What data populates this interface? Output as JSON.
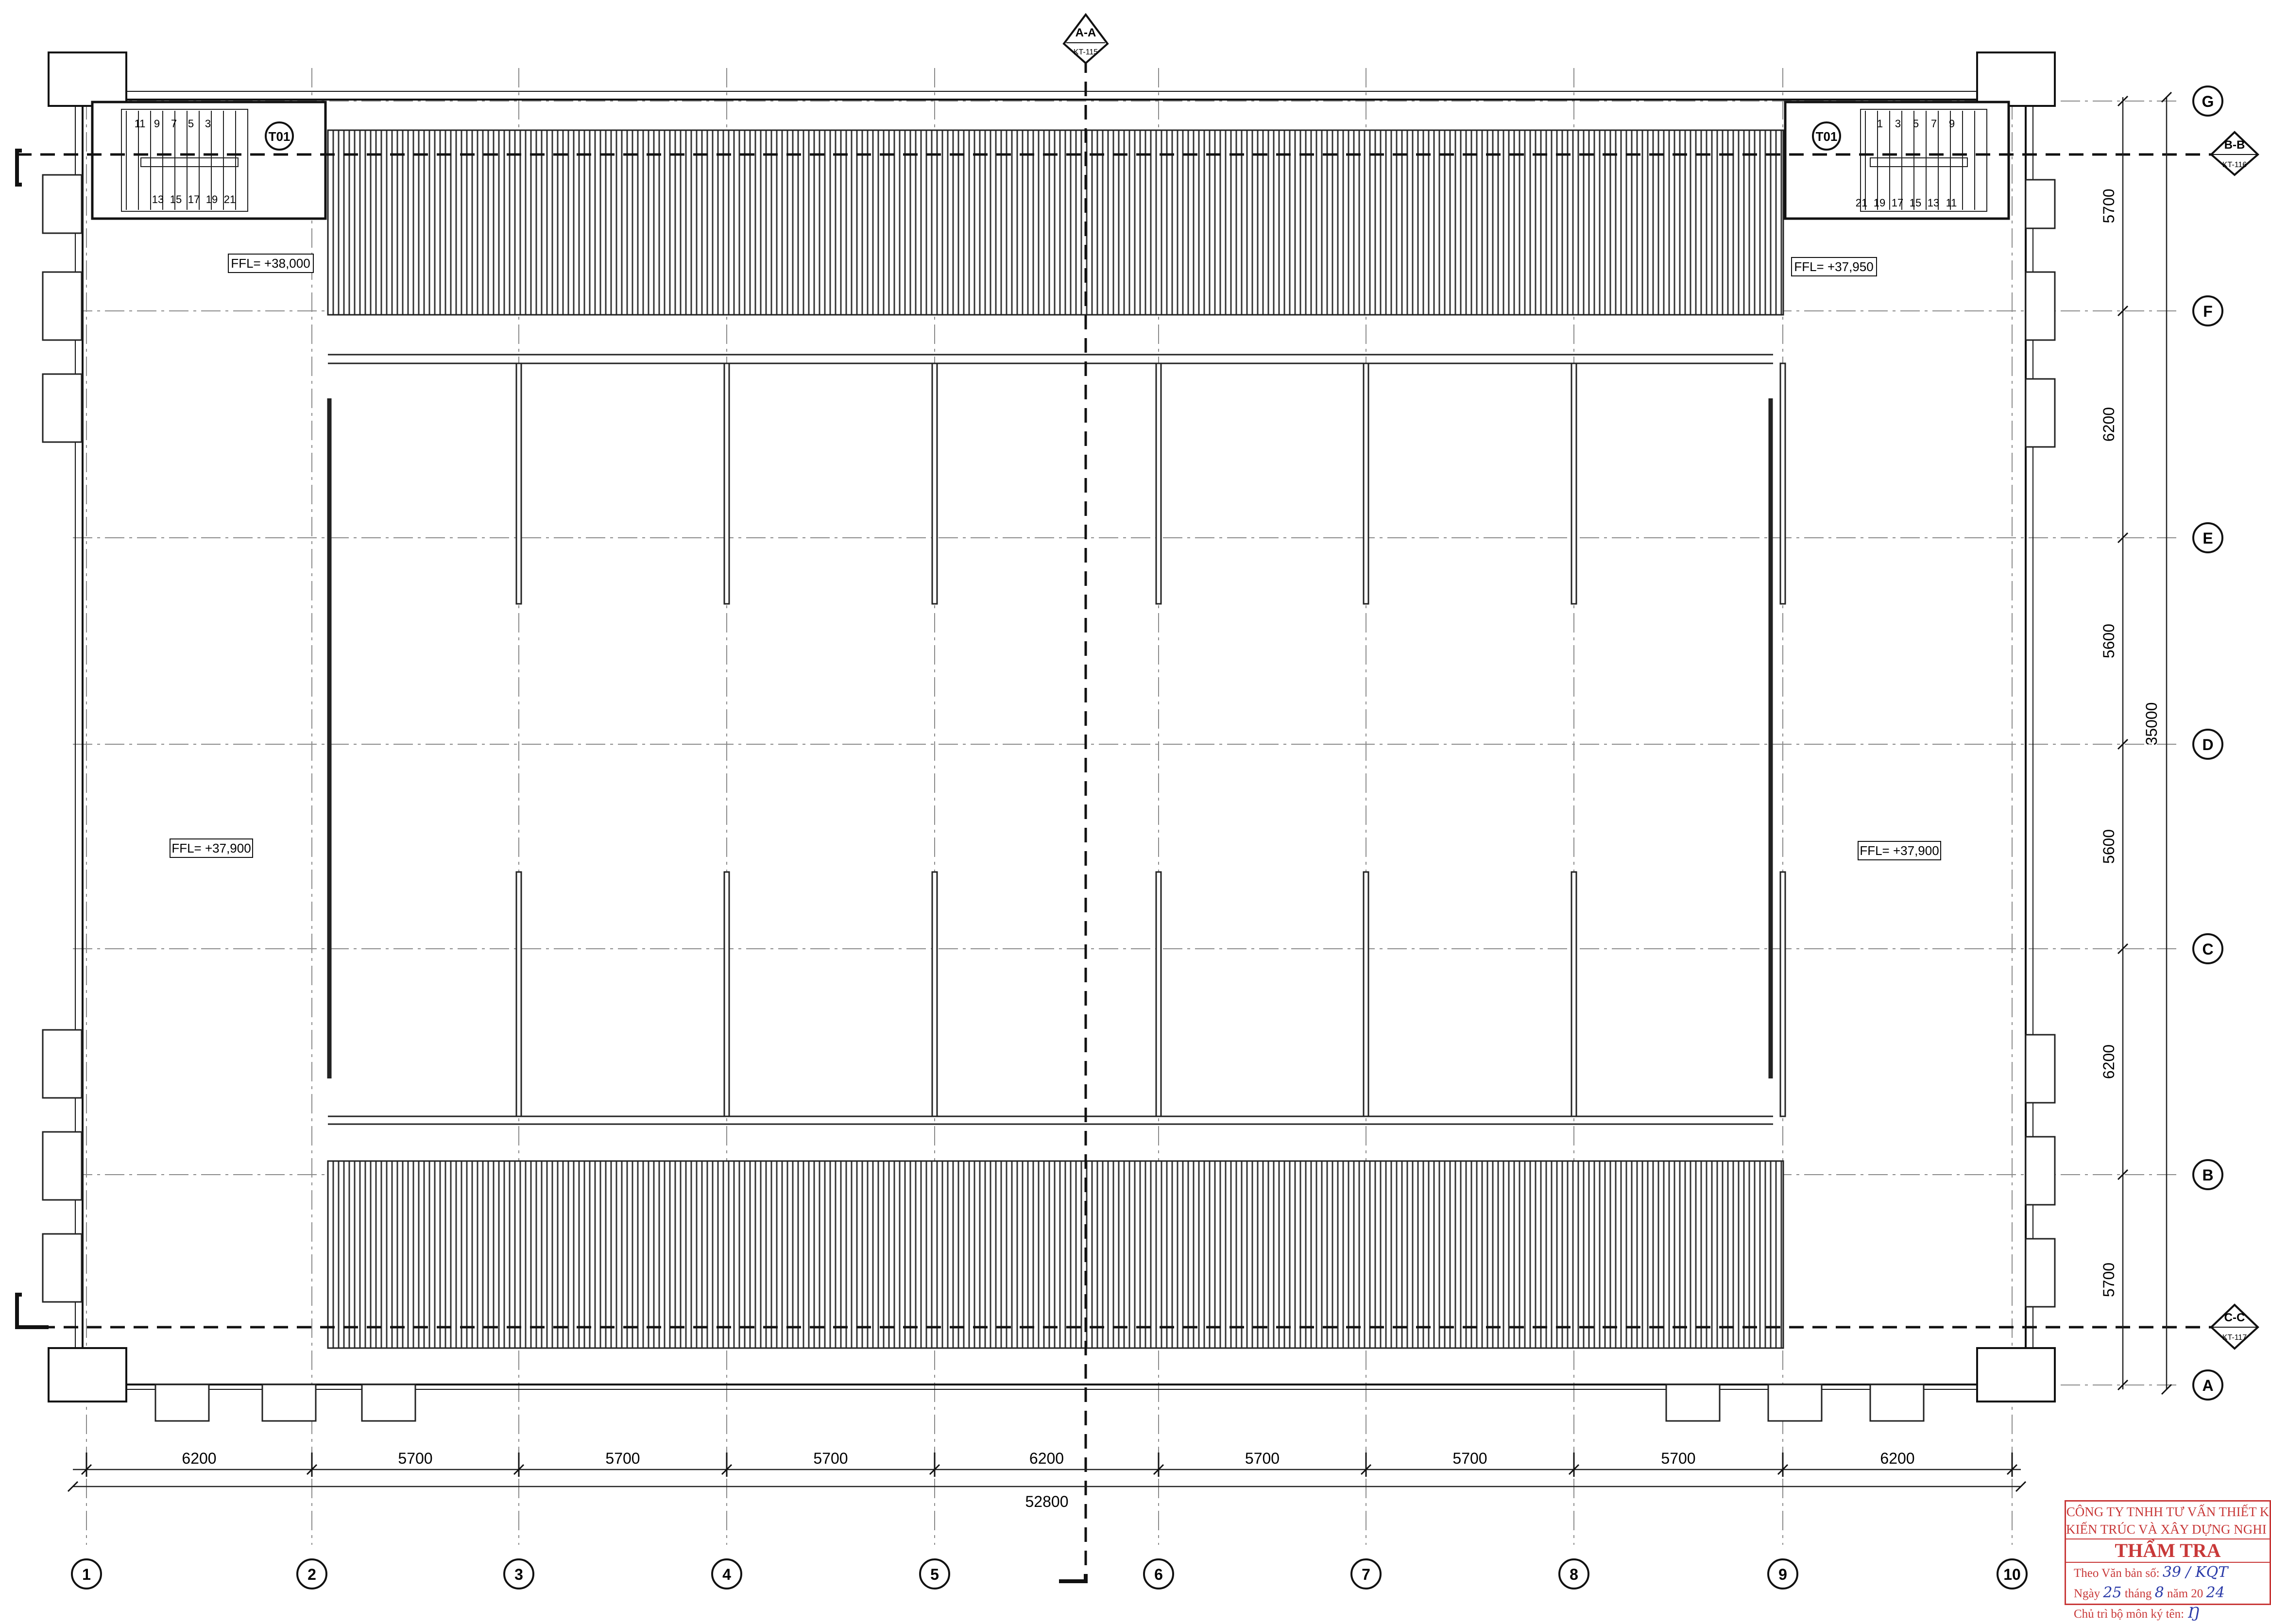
{
  "drawing": {
    "grid_columns": [
      "1",
      "2",
      "3",
      "4",
      "5",
      "6",
      "7",
      "8",
      "9",
      "10"
    ],
    "grid_rows": [
      "G",
      "F",
      "E",
      "D",
      "C",
      "B",
      "A"
    ],
    "bottom_dims": [
      "6200",
      "5700",
      "5700",
      "5700",
      "6200",
      "5700",
      "5700",
      "5700",
      "6200"
    ],
    "bottom_total": "52800",
    "right_dims": [
      "5700",
      "6200",
      "5600",
      "5600",
      "6200",
      "5700"
    ],
    "right_total": "35000",
    "sections": [
      {
        "label": "A-A",
        "ref": "KT-115"
      },
      {
        "label": "B-B",
        "ref": "KT-116"
      },
      {
        "label": "C-C",
        "ref": "KT-117"
      }
    ],
    "stair_tag": "T01",
    "levels": {
      "stair_left": "FFL= +38,000",
      "stair_right": "FFL= +37,950",
      "floor_left": "FFL= +37,900",
      "floor_right": "FFL= +37,900"
    },
    "stair_left_steps_top": [
      "11",
      "9",
      "7",
      "5",
      "3"
    ],
    "stair_left_steps_bottom": [
      "13",
      "15",
      "17",
      "19",
      "21"
    ],
    "stair_right_steps_top": [
      "1",
      "3",
      "5",
      "7",
      "9"
    ],
    "stair_right_steps_bottom": [
      "21",
      "19",
      "17",
      "15",
      "13",
      "11"
    ],
    "colors": {
      "line": "#111111",
      "grid": "#8a8a8a",
      "stamp": "#c83838",
      "ink": "#2a3aa8"
    }
  },
  "stamp": {
    "company_line1": "CÔNG TY TNHH TƯ VẤN THIẾT K",
    "company_line2": "KIẾN TRÚC VÀ XÂY DỰNG NGHI H",
    "title": "THẨM TRA",
    "doc_label": "Theo Văn bản số:",
    "doc_value": "39 / KQT",
    "date_label_day": "Ngày",
    "date_day": "25",
    "date_label_month": "tháng",
    "date_month": "8",
    "date_label_year": "năm 20",
    "date_year": "24",
    "sign_label": "Chủ trì bộ môn ký tên:",
    "sign_mark": "Ŋ"
  }
}
